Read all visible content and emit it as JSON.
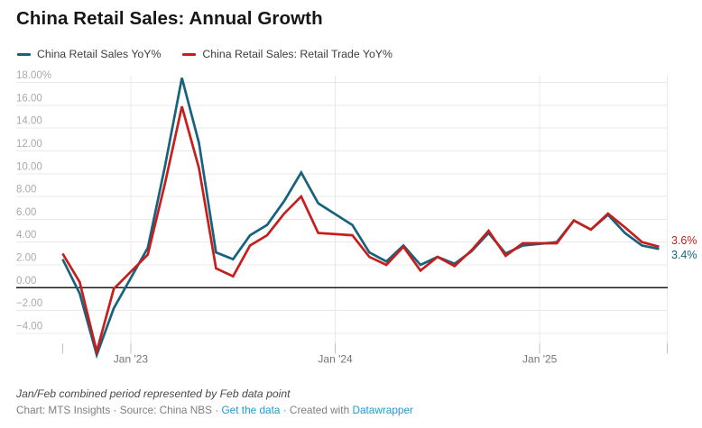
{
  "header": {
    "title": "China Retail Sales: Annual Growth"
  },
  "chart_data": {
    "type": "line",
    "title": "China Retail Sales: Annual Growth",
    "grid": true,
    "legend_position": "top",
    "ylim": [
      -6.3,
      18.6
    ],
    "x_dates": [
      "2022-09",
      "2022-10",
      "2022-11",
      "2022-12",
      "2023-02",
      "2023-03",
      "2023-04",
      "2023-05",
      "2023-06",
      "2023-07",
      "2023-08",
      "2023-09",
      "2023-10",
      "2023-11",
      "2023-12",
      "2024-02",
      "2024-03",
      "2024-04",
      "2024-05",
      "2024-06",
      "2024-07",
      "2024-08",
      "2024-09",
      "2024-10",
      "2024-11",
      "2024-12",
      "2025-02",
      "2025-03",
      "2025-04",
      "2025-05",
      "2025-06",
      "2025-07",
      "2025-08"
    ],
    "series": [
      {
        "name": "China Retail Sales YoY%",
        "color": "#17627c",
        "end_label": "3.4%",
        "values": [
          2.5,
          -0.5,
          -5.9,
          -1.8,
          3.5,
          10.6,
          18.4,
          12.7,
          3.1,
          2.5,
          4.6,
          5.5,
          7.6,
          10.1,
          7.4,
          5.5,
          3.1,
          2.3,
          3.7,
          2.0,
          2.7,
          2.1,
          3.2,
          4.8,
          3.0,
          3.7,
          4.0,
          5.9,
          5.1,
          6.4,
          4.8,
          3.7,
          3.4
        ]
      },
      {
        "name": "China Retail Sales: Retail Trade YoY%",
        "color": "#c71e1d",
        "end_label": "3.6%",
        "values": [
          3.0,
          0.5,
          -5.6,
          -0.1,
          2.9,
          9.1,
          15.9,
          10.5,
          1.7,
          1.0,
          3.7,
          4.6,
          6.5,
          8.0,
          4.8,
          4.6,
          2.7,
          2.0,
          3.6,
          1.5,
          2.7,
          1.9,
          3.3,
          5.0,
          2.8,
          3.9,
          3.9,
          5.9,
          5.1,
          6.5,
          5.3,
          4.0,
          3.6
        ]
      }
    ],
    "y_axis": {
      "ticks": [
        {
          "value": 18,
          "label": "18.00%"
        },
        {
          "value": 16,
          "label": "16.00"
        },
        {
          "value": 14,
          "label": "14.00"
        },
        {
          "value": 12,
          "label": "12.00"
        },
        {
          "value": 10,
          "label": "10.00"
        },
        {
          "value": 8,
          "label": "8.00"
        },
        {
          "value": 6,
          "label": "6.00"
        },
        {
          "value": 4,
          "label": "4.00"
        },
        {
          "value": 2,
          "label": "2.00"
        },
        {
          "value": 0,
          "label": "0.00"
        },
        {
          "value": -2,
          "label": "−2.00"
        },
        {
          "value": -4,
          "label": "−4.00"
        }
      ]
    },
    "x_axis": {
      "ticks": [
        {
          "date": "2023-01",
          "label": "Jan '23"
        },
        {
          "date": "2024-01",
          "label": "Jan '24"
        },
        {
          "date": "2025-01",
          "label": "Jan '25"
        }
      ]
    }
  },
  "footer": {
    "footnote": "Jan/Feb combined period represented by Feb data point",
    "credit_segments": [
      {
        "text": "Chart: MTS Insights · Source: China NBS · ",
        "link": false
      },
      {
        "text": "Get the data",
        "link": true
      },
      {
        "text": " · Created with ",
        "link": false
      },
      {
        "text": "Datawrapper",
        "link": true
      }
    ]
  },
  "colors": {
    "background": "#ffffff",
    "grid": "#e9e9e9",
    "zero_line": "#1a1a1a",
    "tick": "#c2c2c2",
    "y_label": "#a9a9a9",
    "x_label": "#757575",
    "title": "#161616",
    "legend_text": "#3c3c3c",
    "footnote": "#494949",
    "credit": "#7e7e7e",
    "link": "#1d9bd5"
  }
}
